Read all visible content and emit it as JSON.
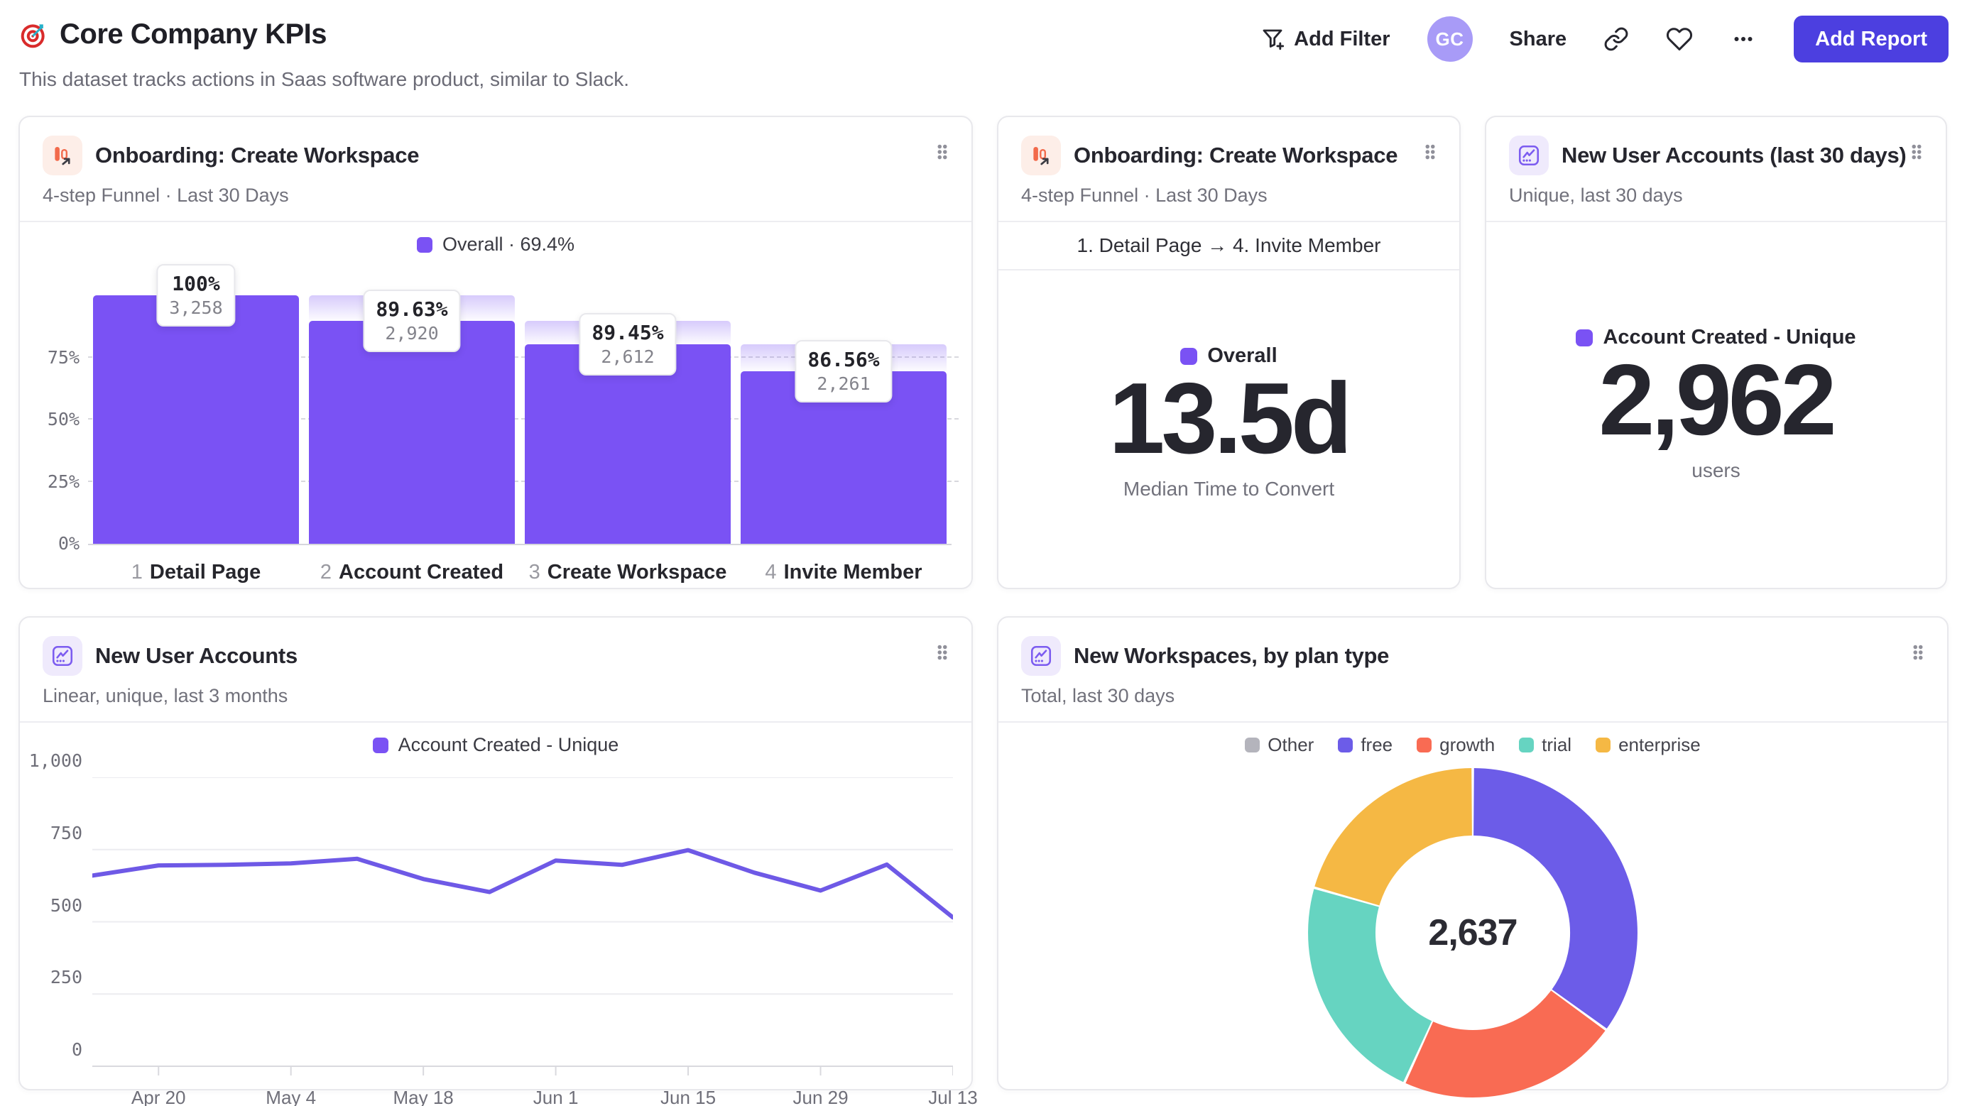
{
  "header": {
    "title": "Core Company KPIs",
    "subtitle": "This dataset tracks actions in Saas software product, similar to Slack.",
    "add_filter_label": "Add Filter",
    "avatar_initials": "GC",
    "share_label": "Share",
    "add_report_label": "Add Report"
  },
  "colors": {
    "accent_purple": "#7a52f4",
    "line_purple": "#6e59e6",
    "button_indigo": "#4c3fe0",
    "grid_solid": "#ececf0",
    "grid_dashed": "#d8d8de"
  },
  "cards": {
    "funnel": {
      "title": "Onboarding: Create Workspace",
      "subtitle": "4-step Funnel · Last 30 Days",
      "legend": "Overall · 69.4%"
    },
    "ttc": {
      "title": "Onboarding: Create Workspace",
      "subtitle": "4-step Funnel · Last 30 Days",
      "range": "1. Detail Page → 4. Invite Member",
      "legend": "Overall",
      "value": "13.5d",
      "caption": "Median Time to Convert"
    },
    "nu30": {
      "title": "New User Accounts (last 30 days)",
      "subtitle": "Unique, last 30 days",
      "legend": "Account Created - Unique",
      "value": "2,962",
      "caption": "users"
    },
    "nuline": {
      "title": "New User Accounts",
      "subtitle": "Linear, unique, last 3 months",
      "legend": "Account Created - Unique"
    },
    "donut": {
      "title": "New Workspaces, by plan type",
      "subtitle": "Total, last 30 days",
      "center": "2,637"
    }
  },
  "chart_data": [
    {
      "name": "onboarding-funnel",
      "type": "bar",
      "subtype": "funnel",
      "title": "Onboarding: Create Workspace",
      "legend": "Overall · 69.4%",
      "categories": [
        "Detail Page",
        "Account Created",
        "Create Workspace",
        "Invite Member"
      ],
      "step_numbers": [
        "1",
        "2",
        "3",
        "4"
      ],
      "values": [
        3258,
        2920,
        2612,
        2261
      ],
      "value_labels": [
        "3,258",
        "2,920",
        "2,612",
        "2,261"
      ],
      "step_conversion_pct": [
        "100%",
        "89.63%",
        "89.45%",
        "86.56%"
      ],
      "overall_conversion_pct": "69.4%",
      "y_axis_labels": [
        "0%",
        "25%",
        "50%",
        "75%"
      ],
      "ylim": [
        0,
        100
      ],
      "grid": "dashed horizontal at 25/50/75"
    },
    {
      "name": "median-time-to-convert",
      "type": "metric",
      "legend": "Overall",
      "value": "13.5d",
      "caption": "Median Time to Convert",
      "range": "1. Detail Page → 4. Invite Member"
    },
    {
      "name": "new-user-accounts-30d",
      "type": "metric",
      "legend": "Account Created - Unique",
      "value": "2,962",
      "caption": "users"
    },
    {
      "name": "new-user-accounts-line",
      "type": "line",
      "series": [
        {
          "name": "Account Created - Unique",
          "values": [
            660,
            695,
            697,
            702,
            718,
            648,
            603,
            712,
            697,
            748,
            670,
            608,
            698,
            515
          ]
        }
      ],
      "x_points": 14,
      "tick_indices": [
        1,
        3,
        5,
        7,
        9,
        11,
        13
      ],
      "tick_labels": [
        "Apr 20",
        "May 4",
        "May 18",
        "Jun 1",
        "Jun 15",
        "Jun 29",
        "Jul 13"
      ],
      "yticks": [
        0,
        250,
        500,
        750,
        1000
      ],
      "ytick_labels": [
        "0",
        "250",
        "500",
        "750",
        "1,000"
      ],
      "ylim": [
        0,
        1000
      ],
      "grid": "solid horizontal",
      "legend_position": "top-center"
    },
    {
      "name": "new-workspaces-by-plan-type",
      "type": "pie",
      "subtype": "donut",
      "total": 2637,
      "total_label": "2,637",
      "slices": [
        {
          "label": "Other",
          "value": 0,
          "color": "#b4b4bc"
        },
        {
          "label": "free",
          "value": 923,
          "color": "#6c5ce8"
        },
        {
          "label": "growth",
          "value": 575,
          "color": "#f96b53"
        },
        {
          "label": "trial",
          "value": 596,
          "color": "#66d4c1"
        },
        {
          "label": "enterprise",
          "value": 543,
          "color": "#f5b844"
        }
      ],
      "start_angle": "12 o'clock, clockwise",
      "legend_position": "top-center"
    }
  ]
}
